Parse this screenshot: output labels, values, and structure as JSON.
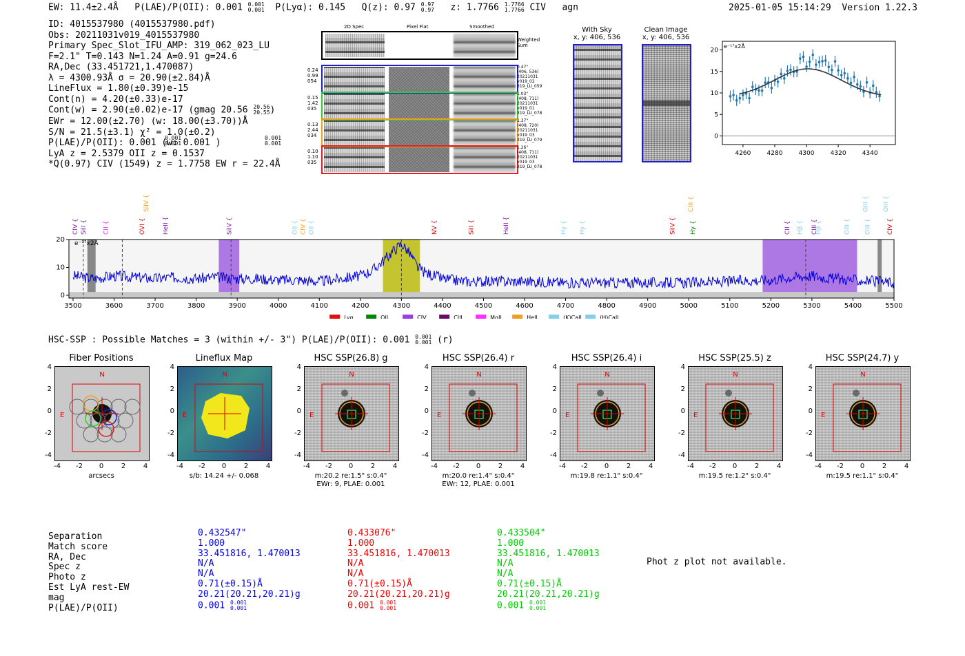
{
  "header": {
    "ew": "EW: 11.4±2.4Å",
    "plae": "P(LAE)/P(OII): 0.001",
    "plae_hi": "0.001",
    "plae_lo": "0.001",
    "plya": "P(Lyα): 0.145",
    "qz": "Q(z): 0.97",
    "qz_hi": "0.97",
    "qz_lo": "0.97",
    "z": "z: 1.7766",
    "z_hi": "1.7766",
    "z_lo": "1.7766",
    "line": "CIV",
    "cls": "agn",
    "timestamp": "2025-01-05 15:14:29",
    "version": "Version 1.22.3"
  },
  "info": {
    "lines": [
      "ID: 4015537980 (4015537980.pdf)",
      "Obs: 20211031v019_4015537980",
      "Primary Spec_Slot_IFU_AMP: 319_062_023_LU",
      "F=2.1\"  T=0.143  N=1.24  A=0.91  g=24.6",
      "RA,Dec (33.451721,1.470087)",
      "λ = 4300.93Å  σ = 20.90(±2.84)Å",
      "LineFlux = 1.80(±0.39)e-15",
      "Cont(n) = 4.20(±0.33)e-17",
      "Cont(w) = 2.90(±0.02)e-17 (gmag 20.56",
      "EWr = 12.00(±2.70) (w: 18.00(±3.70))Å",
      "S/N = 21.5(±3.1)  χ² = 1.0(±0.2)",
      "P(LAE)/P(OII): 0.001      (w: 0.001     )",
      "LyA z = 2.5379  OII z = 0.1537",
      "*Q(0.97) CIV (1549) z = 1.7758  EW r = 22.4Å"
    ],
    "gmag_hi": "20.56",
    "gmag_lo": "20.55",
    "plae_frac": "0.001",
    "plae_frac2": "0.001"
  },
  "fibers": {
    "col_titles": [
      "2D Spec",
      "Pixel Flat",
      "Smoothed"
    ],
    "weighted_label": "Weighted\nSum",
    "rows": [
      {
        "left": [
          "0.24",
          "0.99",
          "054"
        ],
        "right": [
          "0.47\"",
          "(406, 536)",
          "20211031",
          "v019_02",
          "319_LU_059"
        ],
        "color": "#1f1fd0"
      },
      {
        "left": [
          "0.15",
          "1.42",
          "035"
        ],
        "right": [
          "1.03\"",
          "(408, 711)",
          "20211031",
          "v019_01",
          "319_LU_078"
        ],
        "color": "#2ecc2e"
      },
      {
        "left": [
          "0.13",
          "2.44",
          "034"
        ],
        "right": [
          "1.37\"",
          "(408, 720)",
          "20211031",
          "v019_03",
          "319_LU_079"
        ],
        "color": "#f0a020"
      },
      {
        "left": [
          "0.10",
          "1.10",
          "035"
        ],
        "right": [
          "1.26\"",
          "(408, 711)",
          "20211031",
          "v019_03",
          "319_LU_078"
        ],
        "color": "#e02020"
      }
    ]
  },
  "sky": {
    "with_sky_title": "With Sky",
    "with_sky_coords": "x, y: 406, 536",
    "clean_title": "Clean Image",
    "clean_coords": "x, y: 406, 536"
  },
  "zoom_plot": {
    "unit": "e⁻¹⁷x2Å",
    "xticks": [
      4260,
      4280,
      4300,
      4320,
      4340
    ],
    "yticks": [
      0,
      5,
      10,
      15,
      20
    ],
    "xlim": [
      4247,
      4356
    ],
    "ylim": [
      -2,
      22
    ]
  },
  "chart_data": {
    "type": "line",
    "title": "",
    "unit_label": "e⁻¹⁷x2Å",
    "xlabel": "",
    "ylabel": "",
    "xlim": [
      3490,
      5500
    ],
    "ylim": [
      -1,
      20
    ],
    "xticks": [
      3500,
      3600,
      3700,
      3800,
      3900,
      4000,
      4100,
      4200,
      4300,
      4400,
      4500,
      4600,
      4700,
      4800,
      4900,
      5000,
      5100,
      5200,
      5300,
      5400,
      5500
    ],
    "yticks": [
      0,
      10,
      20
    ],
    "spectrum": {
      "x": [
        3500,
        3550,
        3600,
        3650,
        3700,
        3750,
        3800,
        3850,
        3900,
        3950,
        4000,
        4050,
        4100,
        4150,
        4200,
        4230,
        4260,
        4280,
        4300,
        4310,
        4320,
        4340,
        4360,
        4400,
        4450,
        4500,
        4550,
        4600,
        4700,
        4800,
        4900,
        5000,
        5100,
        5200,
        5250,
        5300,
        5350,
        5400,
        5450,
        5500
      ],
      "y": [
        7,
        6,
        7,
        6.5,
        6,
        6.5,
        6,
        6.5,
        6,
        6,
        5.5,
        5.5,
        5,
        6,
        7,
        9,
        13,
        16,
        18.5,
        17,
        15,
        10,
        8,
        6,
        5,
        5,
        5,
        5,
        4.5,
        4.5,
        4.5,
        4.5,
        5,
        5.5,
        6.5,
        7,
        6,
        5.5,
        5,
        4.5
      ]
    },
    "highlight_bands": [
      {
        "x0": 3855,
        "x1": 3905,
        "color": "#9b59e0"
      },
      {
        "x0": 4255,
        "x1": 4345,
        "color": "#b8b800"
      },
      {
        "x0": 5180,
        "x1": 5410,
        "color": "#9b59e0"
      }
    ],
    "line_labels": [
      {
        "name": "CIV",
        "x": 3505,
        "color": "#7a1fa0",
        "row": 1
      },
      {
        "name": "SiII",
        "x": 3525,
        "color": "#7a1fa0",
        "row": 1
      },
      {
        "name": "CII",
        "x": 3580,
        "color": "#e030e0",
        "row": 1
      },
      {
        "name": "SiIV",
        "x": 3678,
        "color": "#f0a020",
        "row": 0
      },
      {
        "name": "OVI",
        "x": 3668,
        "color": "#cc0000",
        "row": 1
      },
      {
        "name": "HeII",
        "x": 3725,
        "color": "#7a1fa0",
        "row": 1
      },
      {
        "name": "SiIV",
        "x": 3880,
        "color": "#7a1fa0",
        "row": 1
      },
      {
        "name": "OII",
        "x": 4040,
        "color": "#87ceeb",
        "row": 1
      },
      {
        "name": "CIV",
        "x": 4060,
        "color": "#f0a020",
        "row": 1
      },
      {
        "name": "OII",
        "x": 4080,
        "color": "#87ceeb",
        "row": 1
      },
      {
        "name": "NV",
        "x": 4380,
        "color": "#cc0000",
        "row": 1
      },
      {
        "name": "SiII",
        "x": 4470,
        "color": "#cc0000",
        "row": 1
      },
      {
        "name": "HeII",
        "x": 4555,
        "color": "#7a1fa0",
        "row": 1
      },
      {
        "name": "Hγ",
        "x": 4695,
        "color": "#87ceeb",
        "row": 1
      },
      {
        "name": "Hγ",
        "x": 4740,
        "color": "#87ceeb",
        "row": 1
      },
      {
        "name": "SiIV",
        "x": 4960,
        "color": "#cc0000",
        "row": 1
      },
      {
        "name": "CIII",
        "x": 5005,
        "color": "#f0a020",
        "row": 0
      },
      {
        "name": "Hγ",
        "x": 5010,
        "color": "#008800",
        "row": 1
      },
      {
        "name": "CII",
        "x": 5240,
        "color": "#7a1fa0",
        "row": 1
      },
      {
        "name": "Hβ",
        "x": 5270,
        "color": "#87ceeb",
        "row": 1
      },
      {
        "name": "CIII",
        "x": 5305,
        "color": "#7a1fa0",
        "row": 1
      },
      {
        "name": "Hβ",
        "x": 5315,
        "color": "#87ceeb",
        "row": 1
      },
      {
        "name": "OIII",
        "x": 5385,
        "color": "#87ceeb",
        "row": 1
      },
      {
        "name": "OIII",
        "x": 5430,
        "color": "#87ceeb",
        "row": 0
      },
      {
        "name": "OIII",
        "x": 5435,
        "color": "#87ceeb",
        "row": 1
      },
      {
        "name": "OIII",
        "x": 5480,
        "color": "#87ceeb",
        "row": 0
      },
      {
        "name": "CIV",
        "x": 5490,
        "color": "#cc0000",
        "row": 1
      }
    ],
    "legend": [
      {
        "name": "Lyα",
        "color": "#e01010"
      },
      {
        "name": "OII",
        "color": "#008800"
      },
      {
        "name": "CIV",
        "color": "#9b3de0"
      },
      {
        "name": "CIII",
        "color": "#6a0d6a"
      },
      {
        "name": "MgII",
        "color": "#ff30ff"
      },
      {
        "name": "HeII",
        "color": "#f0a020"
      },
      {
        "name": "(K)CaII",
        "color": "#87ceeb"
      },
      {
        "name": "(H)CaII",
        "color": "#87ceeb"
      }
    ]
  },
  "hsc": {
    "title": "HSC-SSP : Possible Matches = 3 (within +/- 3\")  P(LAE)/P(OII): 0.001",
    "title_hi": "0.001",
    "title_lo": "0.001",
    "title_band": "(r)",
    "panels": [
      {
        "title": "Fiber Positions",
        "caption": "arcsecs",
        "caption2": ""
      },
      {
        "title": "Lineflux Map",
        "caption": "s/b: 14.24 +/- 0.068",
        "caption2": ""
      },
      {
        "title": "HSC SSP(26.8) g",
        "caption": "m:20.2  re:1.5\"  s:0.4\"",
        "caption2": "EWr: 9, PLAE: 0.001"
      },
      {
        "title": "HSC SSP(26.4) r",
        "caption": "m:20.0  re:1.4\"  s:0.4\"",
        "caption2": "EWr: 12, PLAE: 0.001"
      },
      {
        "title": "HSC SSP(26.4) i",
        "caption": "m:19.8  re:1.1\"  s:0.4\"",
        "caption2": ""
      },
      {
        "title": "HSC SSP(25.5) z",
        "caption": "m:19.5  re:1.2\"  s:0.4\"",
        "caption2": ""
      },
      {
        "title": "HSC SSP(24.7) y",
        "caption": "m:19.5  re:1.1\"  s:0.4\"",
        "caption2": ""
      }
    ],
    "axis_ticks": [
      "-4",
      "-2",
      "0",
      "2",
      "4"
    ],
    "n_label": "N",
    "e_label": "E"
  },
  "matches": {
    "row_labels": [
      "Separation",
      "Match score",
      "RA, Dec",
      "Spec z",
      "Photo z",
      "Est LyA rest-EW",
      "mag",
      "P(LAE)/P(OII)"
    ],
    "columns": [
      {
        "color": "#0000ee",
        "values": [
          "0.432547\"",
          "1.000",
          "33.451816, 1.470013",
          "N/A",
          "N/A",
          "0.71(±0.15)Å",
          "20.21(20.21,20.21)g",
          "0.001"
        ],
        "plae_hi": "0.001",
        "plae_lo": "0.001"
      },
      {
        "color": "#ee0000",
        "values": [
          "0.433076\"",
          "1.000",
          "33.451816, 1.470013",
          "N/A",
          "N/A",
          "0.71(±0.15)Å",
          "20.21(20.21,20.21)g",
          "0.001"
        ],
        "plae_hi": "0.001",
        "plae_lo": "0.001"
      },
      {
        "color": "#00cc00",
        "values": [
          "0.433504\"",
          "1.000",
          "33.451816, 1.470013",
          "N/A",
          "N/A",
          "0.71(±0.15)Å",
          "20.21(20.21,20.21)g",
          "0.001"
        ],
        "plae_hi": "0.001",
        "plae_lo": "0.001"
      }
    ],
    "phot_z_note": "Phot z plot not available."
  }
}
